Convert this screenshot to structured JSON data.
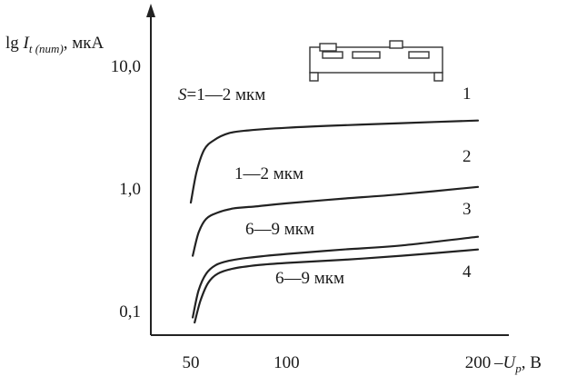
{
  "chart_data": {
    "type": "line",
    "yscale": "log",
    "ylabel": {
      "text": "lg ",
      "var": "I",
      "sub": "t (пит)",
      "unit": ", мкА"
    },
    "xlabel": {
      "prefix": "–",
      "var": "U",
      "sub": "p",
      "unit": ", В"
    },
    "xlim": [
      40,
      215
    ],
    "ylim": [
      0.075,
      15
    ],
    "xticks": [
      {
        "value": 50,
        "label": "50"
      },
      {
        "value": 100,
        "label": "100"
      },
      {
        "value": 200,
        "label": "200"
      }
    ],
    "yticks": [
      {
        "value": 10,
        "label": "10,0"
      },
      {
        "value": 1,
        "label": "1,0"
      },
      {
        "value": 0.1,
        "label": "0,1"
      }
    ],
    "series": [
      {
        "number": "1",
        "label": {
          "var": "S",
          "text": "=1—2 мкм"
        },
        "x": [
          50,
          53,
          57,
          62,
          70,
          80,
          100,
          130,
          160,
          200
        ],
        "y": [
          0.76,
          1.35,
          2.05,
          2.45,
          2.8,
          2.95,
          3.1,
          3.25,
          3.38,
          3.55
        ]
      },
      {
        "number": "2",
        "label": {
          "var": "",
          "text": "1—2 мкм"
        },
        "x": [
          51,
          54,
          58,
          64,
          72,
          85,
          100,
          130,
          160,
          200
        ],
        "y": [
          0.28,
          0.43,
          0.56,
          0.63,
          0.68,
          0.71,
          0.75,
          0.82,
          0.89,
          1.02
        ]
      },
      {
        "number": "3",
        "label": {
          "var": "",
          "text": "6—9 мкм"
        },
        "x": [
          51,
          54,
          58,
          63,
          70,
          80,
          100,
          130,
          160,
          200
        ],
        "y": [
          0.088,
          0.145,
          0.2,
          0.235,
          0.255,
          0.27,
          0.29,
          0.315,
          0.34,
          0.4
        ]
      },
      {
        "number": "4",
        "label": {
          "var": "",
          "text": "6—9 мкм"
        },
        "x": [
          52,
          55,
          59,
          64,
          72,
          85,
          100,
          130,
          160,
          200
        ],
        "y": [
          0.08,
          0.12,
          0.168,
          0.2,
          0.22,
          0.235,
          0.245,
          0.26,
          0.28,
          0.315
        ]
      }
    ]
  }
}
